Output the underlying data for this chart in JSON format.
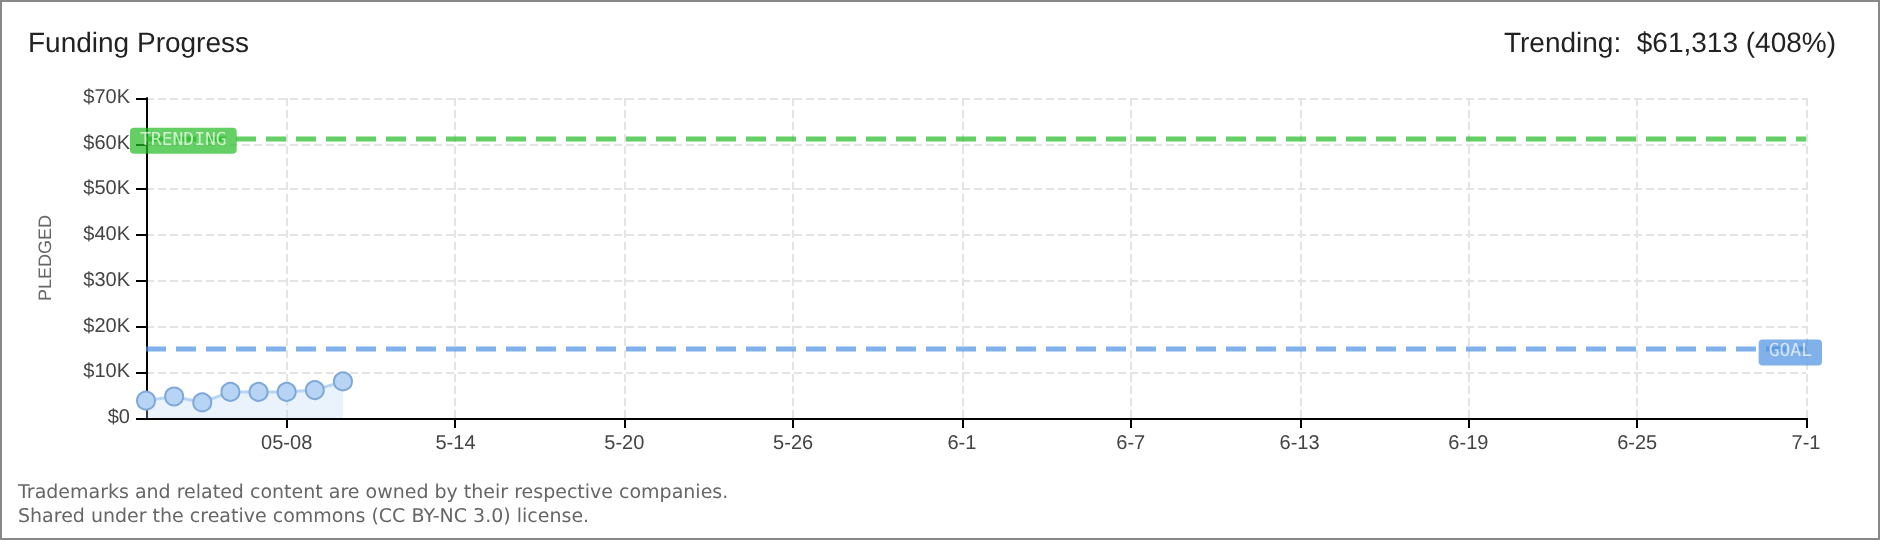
{
  "chart_data": {
    "type": "area",
    "title": "Funding Progress",
    "subtitle": "Trending:  $61,313 (408%)",
    "ylabel": "PLEDGED",
    "x": [
      "--05-03",
      "--05-04",
      "--05-05",
      "--05-06",
      "--05-07",
      "--05-08",
      "--05-09",
      "--05-10"
    ],
    "series": [
      {
        "color": "#b8d4f4",
        "values": [
          3800,
          4700,
          3400,
          5700,
          5700,
          5700,
          6100,
          8000
        ]
      }
    ],
    "xlim": [
      "--05-03",
      "--07-01"
    ],
    "xticks": [
      {
        "value": "--05-08",
        "label": "05-08"
      },
      {
        "value": "--05-14",
        "label": "5-14"
      },
      {
        "value": "--05-20",
        "label": "5-20"
      },
      {
        "value": "--05-26",
        "label": "5-26"
      },
      {
        "value": "--06-01",
        "label": "6-1"
      },
      {
        "value": "--06-07",
        "label": "6-7"
      },
      {
        "value": "--06-13",
        "label": "6-13"
      },
      {
        "value": "--06-19",
        "label": "6-19"
      },
      {
        "value": "--06-25",
        "label": "6-25"
      },
      {
        "value": "--07-01",
        "label": "7-1"
      }
    ],
    "ylim": [
      0,
      70000
    ],
    "yticks": [
      {
        "value": 0,
        "label": "$0"
      },
      {
        "value": 10000,
        "label": "$10K"
      },
      {
        "value": 20000,
        "label": "$20K"
      },
      {
        "value": 30000,
        "label": "$30K"
      },
      {
        "value": 40000,
        "label": "$40K"
      },
      {
        "value": 50000,
        "label": "$50K"
      },
      {
        "value": 60000,
        "label": "$60K"
      },
      {
        "value": 70000,
        "label": "$70K"
      }
    ],
    "ref_lines": [
      {
        "axis": "y",
        "value": 61313,
        "label": "TRENDING",
        "color": "#22bb22",
        "line_style": "dashed"
      },
      {
        "axis": "y",
        "value": 15000,
        "label": "GOAL",
        "color": "#4a90e2",
        "line_style": "dashed"
      }
    ],
    "grid": true,
    "marker": "circle",
    "annotations": [
      "Trademarks and related content are owned by their respective companies.",
      "Shared under the creative commons (CC BY-NC 3.0) license."
    ]
  }
}
